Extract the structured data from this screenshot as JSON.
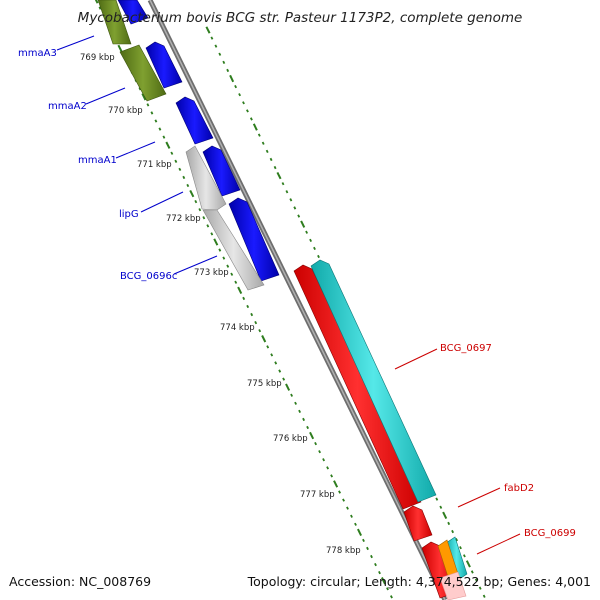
{
  "title": "Mycobacterium bovis BCG str. Pasteur 1173P2, complete genome",
  "footer": {
    "accession": "Accession: NC_008769",
    "topology": "Topology: circular; Length: 4,374,522 bp; Genes: 4,001"
  },
  "colors": {
    "backbone": "#7f7f7f",
    "tick": "#2e7d1e",
    "label_blue": "#0000cc",
    "label_red": "#cc0000",
    "gene_blue": "#0000ee",
    "gene_olive": "#6b8e23",
    "gene_gray": "#c8c8c8",
    "gene_red": "#ff0000",
    "gene_cyan": "#22cccc",
    "gene_orange": "#ff9900",
    "gene_pink": "#ffb6c1"
  },
  "tick_labels": [
    "769 kbp",
    "770 kbp",
    "771 kbp",
    "772 kbp",
    "773 kbp",
    "774 kbp",
    "775 kbp",
    "776 kbp",
    "777 kbp",
    "778 kbp"
  ],
  "gene_labels": [
    {
      "text": "mmaA3",
      "color": "blue"
    },
    {
      "text": "mmaA2",
      "color": "blue"
    },
    {
      "text": "mmaA1",
      "color": "blue"
    },
    {
      "text": "lipG",
      "color": "blue"
    },
    {
      "text": "BCG_0696c",
      "color": "blue"
    },
    {
      "text": "BCG_0697",
      "color": "red"
    },
    {
      "text": "fabD2",
      "color": "red"
    },
    {
      "text": "BCG_0699",
      "color": "red"
    }
  ]
}
